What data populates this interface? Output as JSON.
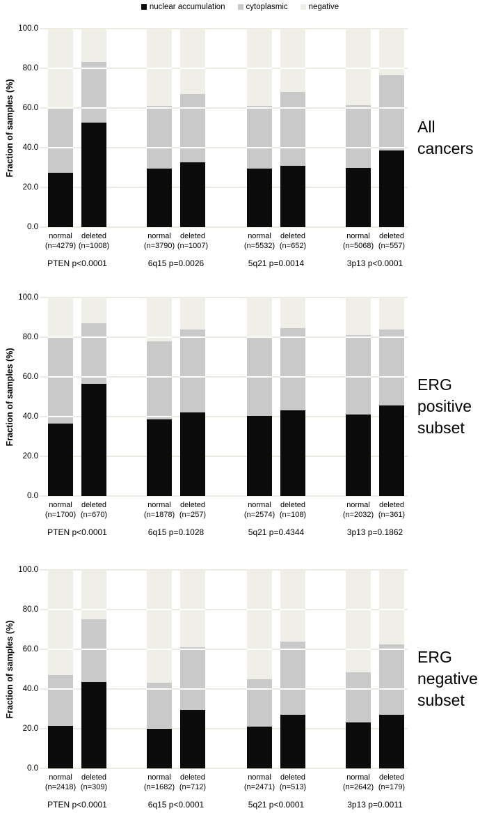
{
  "colors": {
    "nuclear": "#0b0b0b",
    "cytoplasmic": "#c9c9c9",
    "negative": "#f0efe7",
    "gridline": "#edebe0",
    "grid_over_bar": "#ffffff",
    "background": "#ffffff",
    "text": "#000000"
  },
  "legend": {
    "items": [
      {
        "label": "nuclear accumulation",
        "color": "#0b0b0b"
      },
      {
        "label": "cytoplasmic",
        "color": "#c9c9c9"
      },
      {
        "label": "negative",
        "color": "#f0efe7"
      }
    ]
  },
  "y_tick_labels": [
    "100.0",
    "80.0",
    "60.0",
    "40.0",
    "20.0",
    "0.0"
  ],
  "chart_data": [
    {
      "type": "bar",
      "stacked": true,
      "orientation": "vertical",
      "ylabel": "Fraction of samples (%)",
      "ylim": [
        0,
        100
      ],
      "grid": true,
      "side_label_lines": [
        "All",
        "cancers"
      ],
      "series_names": [
        "nuclear accumulation",
        "cytoplasmic",
        "negative"
      ],
      "groups": [
        {
          "gene": "PTEN",
          "p_label": "PTEN p<0.0001",
          "bars": [
            {
              "label": "normal",
              "n_label": "(n=4279)",
              "nuclear": 27.5,
              "cytoplasmic": 32.5,
              "negative": 40.0
            },
            {
              "label": "deleted",
              "n_label": "(n=1008)",
              "nuclear": 52.5,
              "cytoplasmic": 30.5,
              "negative": 17.0
            }
          ]
        },
        {
          "gene": "6q15",
          "p_label": "6q15 p=0.0026",
          "bars": [
            {
              "label": "normal",
              "n_label": "(n=3790)",
              "nuclear": 29.5,
              "cytoplasmic": 31.5,
              "negative": 39.0
            },
            {
              "label": "deleted",
              "n_label": "(n=1007)",
              "nuclear": 32.5,
              "cytoplasmic": 34.5,
              "negative": 33.0
            }
          ]
        },
        {
          "gene": "5q21",
          "p_label": "5q21 p=0.0014",
          "bars": [
            {
              "label": "normal",
              "n_label": "(n=5532)",
              "nuclear": 29.5,
              "cytoplasmic": 31.5,
              "negative": 39.0
            },
            {
              "label": "deleted",
              "n_label": "(n=652)",
              "nuclear": 31.0,
              "cytoplasmic": 37.0,
              "negative": 32.0
            }
          ]
        },
        {
          "gene": "3p13",
          "p_label": "3p13 p<0.0001",
          "bars": [
            {
              "label": "normal",
              "n_label": "(n=5068)",
              "nuclear": 30.0,
              "cytoplasmic": 31.5,
              "negative": 38.5
            },
            {
              "label": "deleted",
              "n_label": "(n=557)",
              "nuclear": 38.5,
              "cytoplasmic": 38.0,
              "negative": 23.5
            }
          ]
        }
      ]
    },
    {
      "type": "bar",
      "stacked": true,
      "orientation": "vertical",
      "ylabel": "Fraction of samples (%)",
      "ylim": [
        0,
        100
      ],
      "grid": true,
      "side_label_lines": [
        "ERG",
        "positive",
        "subset"
      ],
      "series_names": [
        "nuclear accumulation",
        "cytoplasmic",
        "negative"
      ],
      "groups": [
        {
          "gene": "PTEN",
          "p_label": "PTEN p<0.0001",
          "bars": [
            {
              "label": "normal",
              "n_label": "(n=1700)",
              "nuclear": 36.5,
              "cytoplasmic": 43.5,
              "negative": 20.0
            },
            {
              "label": "deleted",
              "n_label": "(n=670)",
              "nuclear": 56.5,
              "cytoplasmic": 30.5,
              "negative": 13.0
            }
          ]
        },
        {
          "gene": "6q15",
          "p_label": "6q15 p=0.1028",
          "bars": [
            {
              "label": "normal",
              "n_label": "(n=1878)",
              "nuclear": 38.5,
              "cytoplasmic": 39.5,
              "negative": 22.0
            },
            {
              "label": "deleted",
              "n_label": "(n=257)",
              "nuclear": 42.0,
              "cytoplasmic": 42.0,
              "negative": 16.0
            }
          ]
        },
        {
          "gene": "5q21",
          "p_label": "5q21 p=0.4344",
          "bars": [
            {
              "label": "normal",
              "n_label": "(n=2574)",
              "nuclear": 40.5,
              "cytoplasmic": 39.0,
              "negative": 20.5
            },
            {
              "label": "deleted",
              "n_label": "(n=108)",
              "nuclear": 43.0,
              "cytoplasmic": 41.5,
              "negative": 15.5
            }
          ]
        },
        {
          "gene": "3p13",
          "p_label": "3p13 p=0.1862",
          "bars": [
            {
              "label": "normal",
              "n_label": "(n=2032)",
              "nuclear": 41.0,
              "cytoplasmic": 40.0,
              "negative": 19.0
            },
            {
              "label": "deleted",
              "n_label": "(n=361)",
              "nuclear": 45.5,
              "cytoplasmic": 38.5,
              "negative": 16.0
            }
          ]
        }
      ]
    },
    {
      "type": "bar",
      "stacked": true,
      "orientation": "vertical",
      "ylabel": "Fraction of samples (%)",
      "ylim": [
        0,
        100
      ],
      "grid": true,
      "side_label_lines": [
        "ERG",
        "negative",
        "subset"
      ],
      "series_names": [
        "nuclear accumulation",
        "cytoplasmic",
        "negative"
      ],
      "groups": [
        {
          "gene": "PTEN",
          "p_label": "PTEN p<0.0001",
          "bars": [
            {
              "label": "normal",
              "n_label": "(n=2418)",
              "nuclear": 21.5,
              "cytoplasmic": 25.5,
              "negative": 53.0
            },
            {
              "label": "deleted",
              "n_label": "(n=309)",
              "nuclear": 43.5,
              "cytoplasmic": 31.5,
              "negative": 25.0
            }
          ]
        },
        {
          "gene": "6q15",
          "p_label": "6q15 p<0.0001",
          "bars": [
            {
              "label": "normal",
              "n_label": "(n=1682)",
              "nuclear": 20.0,
              "cytoplasmic": 23.0,
              "negative": 57.0
            },
            {
              "label": "deleted",
              "n_label": "(n=712)",
              "nuclear": 29.5,
              "cytoplasmic": 31.5,
              "negative": 39.0
            }
          ]
        },
        {
          "gene": "5q21",
          "p_label": "5q21 p<0.0001",
          "bars": [
            {
              "label": "normal",
              "n_label": "(n=2471)",
              "nuclear": 21.0,
              "cytoplasmic": 24.0,
              "negative": 55.0
            },
            {
              "label": "deleted",
              "n_label": "(n=513)",
              "nuclear": 27.0,
              "cytoplasmic": 37.0,
              "negative": 36.0
            }
          ]
        },
        {
          "gene": "3p13",
          "p_label": "3p13 p=0.0011",
          "bars": [
            {
              "label": "normal",
              "n_label": "(n=2642)",
              "nuclear": 23.0,
              "cytoplasmic": 25.5,
              "negative": 51.5
            },
            {
              "label": "deleted",
              "n_label": "(n=179)",
              "nuclear": 27.0,
              "cytoplasmic": 35.5,
              "negative": 37.5
            }
          ]
        }
      ]
    }
  ]
}
